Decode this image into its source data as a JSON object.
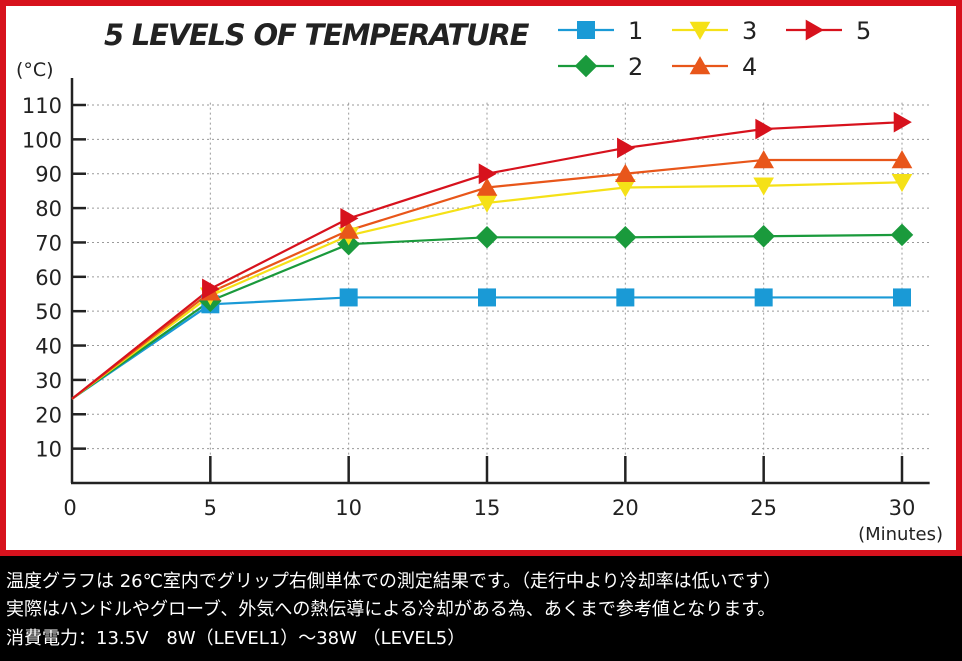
{
  "chart_data": {
    "type": "line",
    "title": "5 LEVELS OF TEMPERATURE",
    "ylabel": "(°C)",
    "xlabel": "(Minutes)",
    "x": [
      0,
      5,
      10,
      15,
      20,
      25,
      30
    ],
    "xlim": [
      0,
      31
    ],
    "ylim": [
      0,
      120
    ],
    "yticks": [
      10,
      20,
      30,
      40,
      50,
      60,
      70,
      80,
      90,
      100,
      110
    ],
    "xticks": [
      0,
      5,
      10,
      15,
      20,
      25,
      30
    ],
    "grid": true,
    "legend_position": "top-right",
    "series": [
      {
        "name": "1",
        "marker": "square",
        "color": "#1a9ad6",
        "values": [
          24.5,
          52,
          54,
          54,
          54,
          54,
          54
        ]
      },
      {
        "name": "2",
        "marker": "diamond",
        "color": "#1a9a3c",
        "values": [
          24.5,
          53,
          69.5,
          71.5,
          71.5,
          71.8,
          72.2
        ]
      },
      {
        "name": "3",
        "marker": "triangle-down",
        "color": "#f5e117",
        "values": [
          24.5,
          54.5,
          72,
          81.5,
          86,
          86.5,
          87.5
        ]
      },
      {
        "name": "4",
        "marker": "triangle-up",
        "color": "#e8561a",
        "values": [
          24.5,
          55.5,
          73.5,
          86,
          90,
          94,
          94
        ]
      },
      {
        "name": "5",
        "marker": "triangle-right",
        "color": "#d7121d",
        "values": [
          24.5,
          56.5,
          77,
          90,
          97.5,
          103,
          105
        ]
      }
    ]
  },
  "captions": {
    "line1": "温度グラフは 26℃室内でグリップ右側単体での測定結果です。（走行中より冷却率は低いです）",
    "line2": "実際はハンドルやグローブ、外気への熱伝導による冷却がある為、あくまで参考値となります。",
    "line3": "消費電力：13.5V　8W（LEVEL1）～38W （LEVEL5）"
  }
}
